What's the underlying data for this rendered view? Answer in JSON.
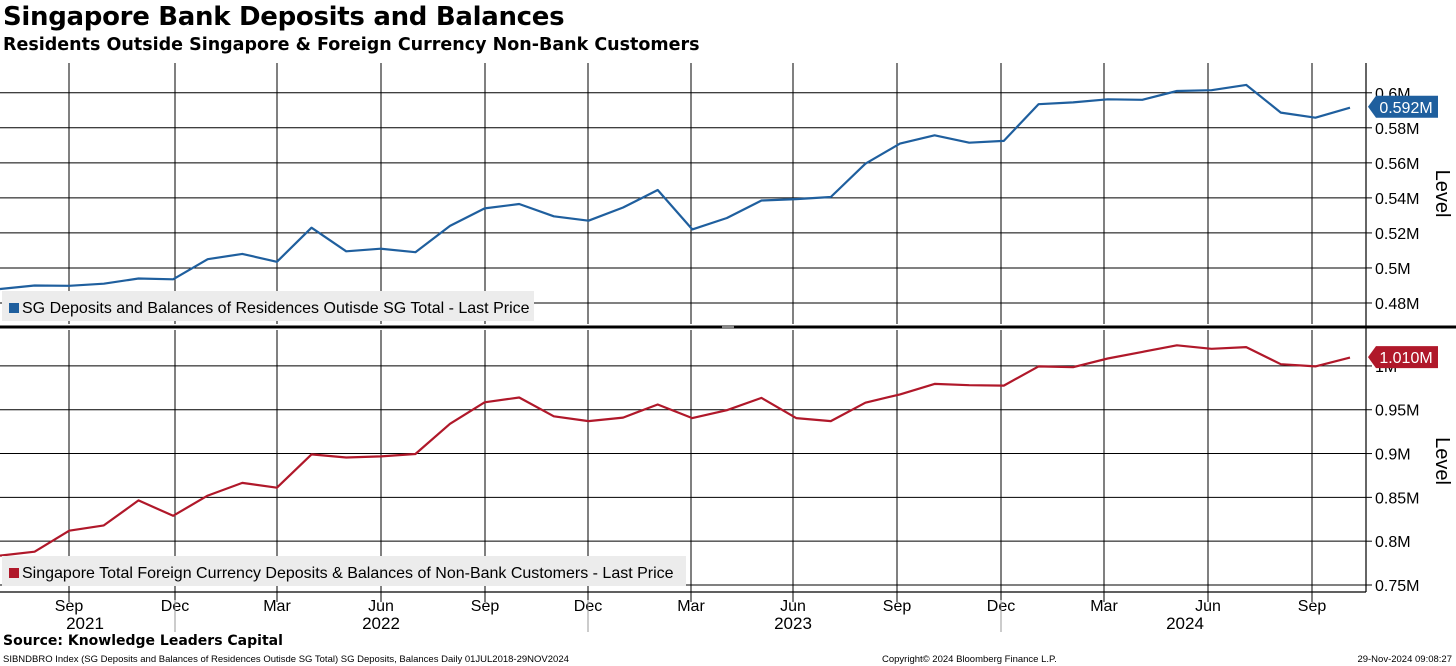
{
  "title": "Singapore Bank Deposits and Balances",
  "subtitle": "Residents Outside Singapore & Foreign Currency Non-Bank Customers",
  "source": "Source: Knowledge Leaders Capital",
  "footer": {
    "left": "SIBNDBRO Index (SG Deposits and Balances of Residences Outisde SG Total) SG Deposits, Balances  Daily 01JUL2018-29NOV2024",
    "middle": "Copyright© 2024 Bloomberg Finance L.P.",
    "right": "29-Nov-2024 09:08:27"
  },
  "chart_data": {
    "type": "line",
    "x_axis": {
      "month_ticks": [
        "Sep",
        "Dec",
        "Mar",
        "Jun",
        "Sep",
        "Dec",
        "Mar",
        "Jun",
        "Sep",
        "Dec",
        "Mar",
        "Jun",
        "Sep"
      ],
      "year_labels": [
        "2021",
        "2022",
        "2023",
        "2024"
      ]
    },
    "colors": {
      "top": "#1f5f9e",
      "bottom": "#b0182a"
    },
    "panels": [
      {
        "name": "top",
        "series_name": "SG Deposits and Balances of Residences Outisde SG Total - Last Price",
        "ylabel": "Level",
        "ylim": [
          0.468,
          0.617
        ],
        "yticks": [
          0.48,
          0.5,
          0.52,
          0.54,
          0.56,
          0.58,
          0.6
        ],
        "ytick_labels": [
          "0.48M",
          "0.5M",
          "0.52M",
          "0.54M",
          "0.56M",
          "0.58M",
          "0.6M"
        ],
        "last_label": "0.592M",
        "last_value": 0.592,
        "values": [
          0.488,
          0.49,
          0.4898,
          0.491,
          0.494,
          0.4935,
          0.505,
          0.508,
          0.5035,
          0.523,
          0.5095,
          0.511,
          0.509,
          0.524,
          0.534,
          0.5365,
          0.5295,
          0.527,
          0.5345,
          0.5445,
          0.522,
          0.5285,
          0.5385,
          0.5393,
          0.5405,
          0.5595,
          0.571,
          0.5757,
          0.5715,
          0.5725,
          0.5935,
          0.5945,
          0.5963,
          0.596,
          0.601,
          0.6015,
          0.6045,
          0.5887,
          0.5858,
          0.5915
        ]
      },
      {
        "name": "bottom",
        "series_name": "Singapore Total Foreign Currency Deposits & Balances of Non-Bank Customers - Last Price",
        "ylabel": "Level",
        "ylim": [
          0.742,
          1.041
        ],
        "yticks": [
          0.75,
          0.8,
          0.85,
          0.9,
          0.95,
          1.0
        ],
        "ytick_labels": [
          "0.75M",
          "0.8M",
          "0.85M",
          "0.9M",
          "0.95M",
          "1M"
        ],
        "last_label": "1.010M",
        "last_value": 1.01,
        "values": [
          0.7835,
          0.788,
          0.812,
          0.818,
          0.8465,
          0.829,
          0.852,
          0.8665,
          0.861,
          0.899,
          0.8955,
          0.8968,
          0.8995,
          0.934,
          0.9585,
          0.964,
          0.9425,
          0.937,
          0.941,
          0.956,
          0.9405,
          0.9495,
          0.9635,
          0.9405,
          0.937,
          0.958,
          0.9675,
          0.9795,
          0.978,
          0.9775,
          0.9995,
          0.9985,
          1.0085,
          1.016,
          1.0235,
          1.0195,
          1.0215,
          1.002,
          0.9995,
          1.0095
        ]
      }
    ]
  }
}
